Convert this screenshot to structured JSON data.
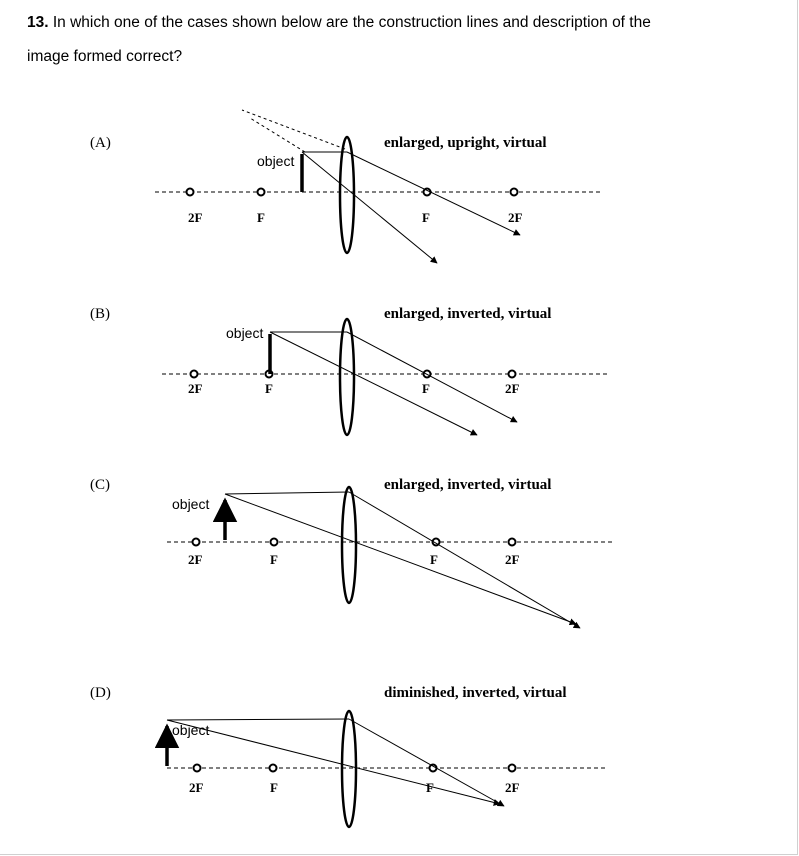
{
  "question": {
    "number": "13.",
    "text_line1": "In which one of the cases shown below are the construction lines and description of the",
    "text_line2": "image formed correct?"
  },
  "cases": [
    {
      "label": "(A)",
      "description": "enlarged, upright, virtual",
      "object_label": "object",
      "point_labels": [
        "2F",
        "F",
        "F",
        "2F"
      ]
    },
    {
      "label": "(B)",
      "description": "enlarged, inverted, virtual",
      "object_label": "object",
      "point_labels": [
        "2F",
        "F",
        "F",
        "2F"
      ]
    },
    {
      "label": "(C)",
      "description": "enlarged, inverted, virtual",
      "object_label": "object",
      "point_labels": [
        "2F",
        "F",
        "F",
        "2F"
      ]
    },
    {
      "label": "(D)",
      "description": "diminished, inverted, virtual",
      "object_label": "object",
      "point_labels": [
        "2F",
        "F",
        "F",
        "2F"
      ]
    }
  ]
}
